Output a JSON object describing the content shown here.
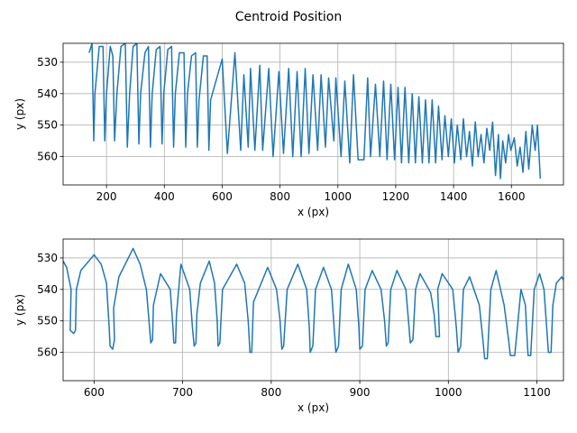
{
  "title": "Centroid Position",
  "chart_data": [
    {
      "type": "line",
      "xlabel": "x (px)",
      "ylabel": "y (px)",
      "color": "#1f77b4",
      "grid": true,
      "xlim": [
        50,
        1780
      ],
      "ylim": [
        569,
        524
      ],
      "xticks": [
        200,
        400,
        600,
        800,
        1000,
        1200,
        1400,
        1600
      ],
      "yticks": [
        530,
        540,
        550,
        560
      ],
      "x": [
        140,
        150,
        156,
        160,
        175,
        188,
        194,
        200,
        213,
        222,
        228,
        236,
        250,
        265,
        272,
        280,
        292,
        305,
        312,
        318,
        333,
        345,
        352,
        358,
        372,
        385,
        392,
        398,
        412,
        425,
        432,
        438,
        452,
        468,
        474,
        480,
        494,
        508,
        514,
        520,
        535,
        548,
        554,
        560,
        600,
        618,
        644,
        664,
        675,
        690,
        698,
        713,
        730,
        740,
        761,
        776,
        796,
        812,
        830,
        844,
        859,
        873,
        887,
        900,
        914,
        930,
        942,
        957,
        968,
        986,
        993,
        1011,
        1024,
        1041,
        1054,
        1070,
        1090,
        1103,
        1113,
        1130,
        1145,
        1158,
        1170,
        1183,
        1196,
        1208,
        1220,
        1232,
        1245,
        1257,
        1268,
        1280,
        1292,
        1303,
        1315,
        1326,
        1338,
        1348,
        1360,
        1370,
        1382,
        1392,
        1403,
        1413,
        1425,
        1434,
        1445,
        1455,
        1465,
        1475,
        1485,
        1495,
        1505,
        1515,
        1525,
        1535,
        1545,
        1555,
        1562,
        1570,
        1580,
        1590,
        1598,
        1610,
        1620,
        1630,
        1640,
        1650,
        1660,
        1672,
        1682,
        1690,
        1700
      ],
      "y": [
        527,
        524,
        555,
        540,
        525,
        525,
        555,
        540,
        525,
        528,
        555,
        540,
        525,
        524,
        557,
        540,
        525,
        524,
        556,
        540,
        527,
        525,
        557,
        540,
        526,
        525,
        556,
        540,
        526,
        525,
        557,
        540,
        527,
        527,
        557,
        540,
        528,
        527,
        557,
        542,
        528,
        528,
        558,
        542,
        529,
        559,
        527,
        558,
        534,
        557,
        532,
        558,
        531,
        558,
        532,
        560,
        533,
        559,
        532,
        560,
        533,
        560,
        532,
        559,
        534,
        558,
        534,
        557,
        535,
        555,
        535,
        560,
        536,
        562,
        534,
        561,
        561,
        535,
        560,
        537,
        560,
        536,
        561,
        537,
        561,
        538,
        562,
        538,
        562,
        540,
        562,
        541,
        562,
        542,
        562,
        542,
        562,
        544,
        561,
        547,
        560,
        548,
        562,
        550,
        561,
        548,
        560,
        552,
        563,
        549,
        560,
        553,
        562,
        551,
        558,
        549,
        566,
        553,
        567,
        555,
        562,
        553,
        558,
        554,
        563,
        557,
        565,
        552,
        564,
        550,
        558,
        550,
        567
      ]
    },
    {
      "type": "line",
      "xlabel": "x (px)",
      "ylabel": "y (px)",
      "color": "#1f77b4",
      "grid": true,
      "xlim": [
        565,
        1130
      ],
      "ylim": [
        569,
        524
      ],
      "xticks": [
        600,
        700,
        800,
        900,
        1000,
        1100
      ],
      "yticks": [
        530,
        540,
        550,
        560
      ],
      "x": [
        565,
        569,
        574,
        573,
        577,
        579,
        580,
        585,
        600,
        608,
        614,
        617,
        618,
        621,
        623,
        622,
        628,
        644,
        652,
        659,
        662,
        664,
        666,
        667,
        675,
        686,
        689,
        690,
        692,
        693,
        698,
        708,
        711,
        713,
        715,
        716,
        720,
        730,
        736,
        739,
        740,
        742,
        745,
        761,
        770,
        774,
        776,
        778,
        780,
        796,
        806,
        810,
        812,
        814,
        818,
        830,
        840,
        843,
        844,
        847,
        850,
        859,
        868,
        871,
        873,
        876,
        879,
        887,
        896,
        899,
        900,
        903,
        906,
        914,
        924,
        928,
        930,
        932,
        935,
        942,
        952,
        955,
        957,
        960,
        963,
        968,
        980,
        984,
        986,
        990,
        988,
        993,
        1005,
        1009,
        1011,
        1014,
        1017,
        1024,
        1035,
        1039,
        1041,
        1044,
        1048,
        1054,
        1063,
        1068,
        1070,
        1075,
        1082,
        1087,
        1089,
        1090,
        1093,
        1097,
        1103,
        1108,
        1111,
        1113,
        1116,
        1118,
        1122,
        1128,
        1130
      ],
      "y": [
        531,
        533,
        540,
        553,
        554,
        553,
        540,
        534,
        529,
        532,
        538,
        552,
        558,
        559,
        556,
        546,
        536,
        527,
        532,
        540,
        550,
        557,
        556,
        545,
        535,
        540,
        552,
        557,
        557,
        548,
        532,
        540,
        552,
        558,
        557,
        548,
        538,
        531,
        538,
        550,
        558,
        557,
        540,
        532,
        538,
        550,
        560,
        560,
        544,
        533,
        540,
        550,
        559,
        558,
        540,
        532,
        540,
        552,
        560,
        558,
        540,
        533,
        540,
        552,
        560,
        558,
        540,
        532,
        540,
        552,
        559,
        558,
        540,
        534,
        540,
        550,
        558,
        557,
        540,
        534,
        540,
        550,
        557,
        556,
        540,
        535,
        541,
        548,
        555,
        555,
        540,
        535,
        540,
        552,
        560,
        558,
        540,
        536,
        545,
        556,
        562,
        562,
        540,
        534,
        545,
        556,
        561,
        561,
        540,
        545,
        556,
        561,
        561,
        540,
        535,
        540,
        552,
        560,
        560,
        545,
        538,
        536,
        537
      ]
    }
  ]
}
